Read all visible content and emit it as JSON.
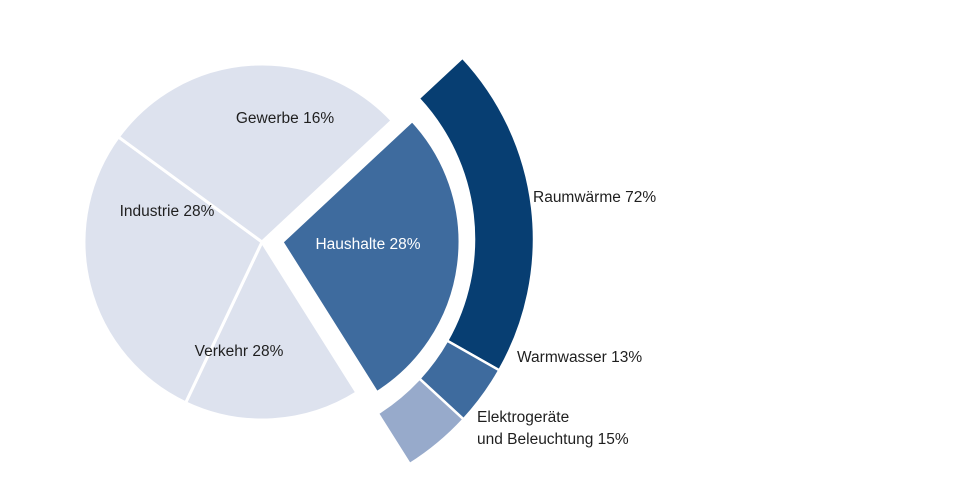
{
  "chart_data": {
    "type": "pie",
    "title": "",
    "sectors": [
      {
        "label": "Gewerbe 16%",
        "category": "Gewerbe",
        "value": 16,
        "color": "#dde2ee"
      },
      {
        "label": "Industrie 28%",
        "category": "Industrie",
        "value": 28,
        "color": "#dde2ee"
      },
      {
        "label": "Verkehr 28%",
        "category": "Verkehr",
        "value": 28,
        "color": "#dde2ee"
      },
      {
        "label": "Haushalte 28%",
        "category": "Haushalte",
        "value": 28,
        "color": "#3e6b9e"
      }
    ],
    "breakdown": {
      "of": "Haushalte",
      "segments": [
        {
          "label": "Raumwärme 72%",
          "category": "Raumwärme",
          "value": 72,
          "color": "#073e72"
        },
        {
          "label": "Warmwasser 13%",
          "category": "Warmwasser",
          "value": 13,
          "color": "#3e6b9e"
        },
        {
          "label_lines": [
            "Elektrogeräte",
            "und Beleuchtung 15%"
          ],
          "category": "Elektrogeräte und Beleuchtung",
          "value": 15,
          "color": "#97aacb"
        }
      ]
    },
    "separator_color": "#ffffff"
  }
}
